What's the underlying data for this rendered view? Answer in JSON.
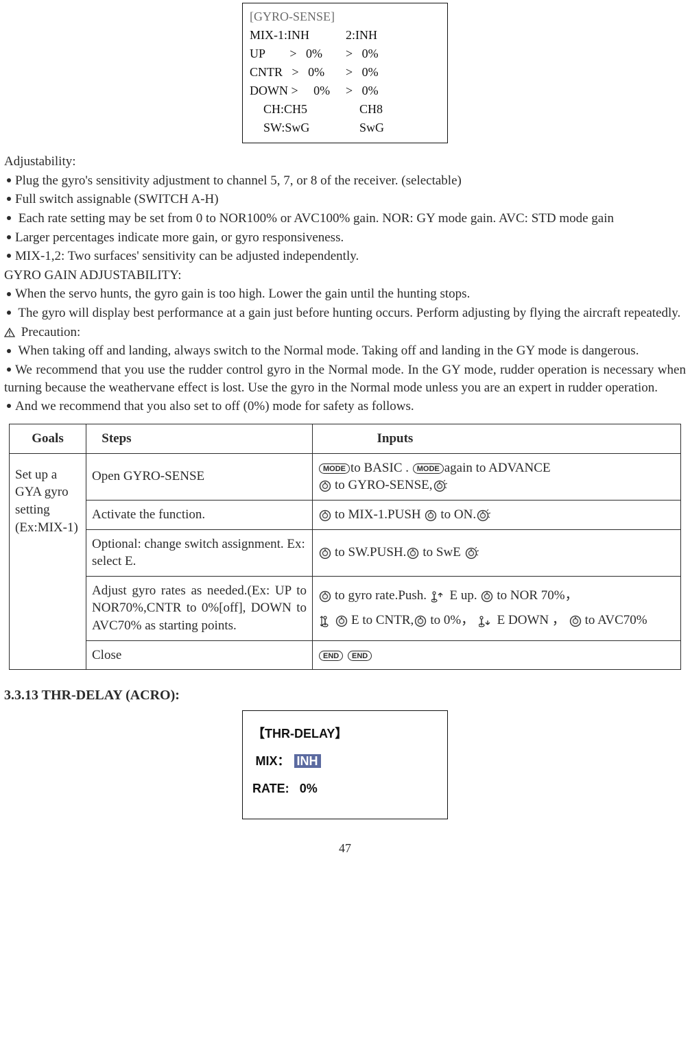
{
  "lcd": {
    "title": "[GYRO-SENSE]",
    "rows": [
      {
        "c1": "MIX-1:INH",
        "c2": "2:INH"
      },
      {
        "c1": "UP        >   0%",
        "c2": ">   0%"
      },
      {
        "c1": "CNTR   >   0%",
        "c2": ">   0%"
      },
      {
        "c1": "DOWN >     0%",
        "c2": ">   0%"
      }
    ],
    "ch_row": {
      "c1": "CH:CH5",
      "c2": "CH8"
    },
    "sw_row": {
      "c1": "SW:SwG",
      "c2": "SwG"
    }
  },
  "adjustability_label": "Adjustability:",
  "bullets_adj": [
    "Plug the gyro's sensitivity adjustment to channel 5, 7, or 8 of the receiver. (selectable)",
    "Full switch assignable (SWITCH A-H)",
    "Each rate setting may be set from 0 to NOR100% or AVC100% gain. NOR: GY mode gain. AVC: STD mode gain",
    "Larger percentages indicate more gain, or gyro responsiveness.",
    "MIX-1,2: Two surfaces' sensitivity can be adjusted independently."
  ],
  "gain_label": "GYRO GAIN ADJUSTABILITY:",
  "bullets_gain": [
    "When the servo hunts, the gyro gain is too high. Lower the gain until the hunting stops.",
    "The gyro will display best performance at a gain just before hunting occurs. Perform adjusting by flying the aircraft repeatedly."
  ],
  "precaution_label": "Precaution:",
  "bullets_precaution": [
    "When taking off and landing, always switch to the Normal mode. Taking off and landing in the GY mode is dangerous.",
    "We recommend that you use the rudder control gyro in the Normal mode. In the GY mode, rudder operation is necessary when turning because the weathervane effect is lost. Use the gyro in the Normal mode unless you are an expert in rudder operation.",
    "And we recommend that you also set to off (0%) mode for safety as follows."
  ],
  "table": {
    "headers": {
      "goals": "Goals",
      "steps": "Steps",
      "inputs": "Inputs"
    },
    "goal_cell": "Set up a GYA gyro setting (Ex:MIX-1)",
    "rows": [
      {
        "step": "Open GYRO-SENSE",
        "inputs": [
          {
            "t": "btn",
            "v": "MODE"
          },
          {
            "t": "txt",
            "v": "to BASIC . "
          },
          {
            "t": "btn",
            "v": "MODE"
          },
          {
            "t": "txt",
            "v": "again to ADVANCE"
          },
          {
            "t": "br"
          },
          {
            "t": "dial"
          },
          {
            "t": "txt",
            "v": "to GYRO-SENSE,"
          },
          {
            "t": "dialpress"
          }
        ]
      },
      {
        "step": "Activate the function.",
        "inputs": [
          {
            "t": "dial"
          },
          {
            "t": "txt",
            "v": "to MIX-1.PUSH  "
          },
          {
            "t": "dial"
          },
          {
            "t": "txt",
            "v": "to ON."
          },
          {
            "t": "dialpress"
          }
        ]
      },
      {
        "step": "Optional: change switch assignment. Ex: select E.",
        "inputs": [
          {
            "t": "dial"
          },
          {
            "t": "txt",
            "v": "to SW.PUSH."
          },
          {
            "t": "dial"
          },
          {
            "t": "txt",
            "v": "to SwE  "
          },
          {
            "t": "dialpress"
          }
        ]
      },
      {
        "step": "Adjust gyro rates as needed.(Ex: UP to NOR70%,CNTR to 0%[off], DOWN to AVC70% as starting points.",
        "inputs": [
          {
            "t": "dial"
          },
          {
            "t": "txt",
            "v": "to gyro rate.Push. "
          },
          {
            "t": "stickup"
          },
          {
            "t": "txt",
            "v": " E up. "
          },
          {
            "t": "dial"
          },
          {
            "t": "txt",
            "v": "to NOR 70%，"
          },
          {
            "t": "br"
          },
          {
            "t": "stickctr"
          },
          {
            "t": "dial"
          },
          {
            "t": "txt",
            "v": "E to CNTR,"
          },
          {
            "t": "dial"
          },
          {
            "t": "txt",
            "v": "to 0%， "
          },
          {
            "t": "stickdn"
          },
          {
            "t": "txt",
            "v": " E DOWN ， "
          },
          {
            "t": "dial"
          },
          {
            "t": "txt",
            "v": "to AVC70%"
          }
        ]
      },
      {
        "step": "Close",
        "inputs": [
          {
            "t": "btn",
            "v": "END"
          },
          {
            "t": "txt",
            "v": "  "
          },
          {
            "t": "btn",
            "v": "END"
          }
        ]
      }
    ]
  },
  "section_3313": "3.3.13 THR-DELAY (ACRO):",
  "thr_box": {
    "title": "【THR-DELAY】",
    "mix_label": "MIX：",
    "mix_value": "INH",
    "rate_label": "RATE:",
    "rate_value": "0%"
  },
  "page_number": "47"
}
